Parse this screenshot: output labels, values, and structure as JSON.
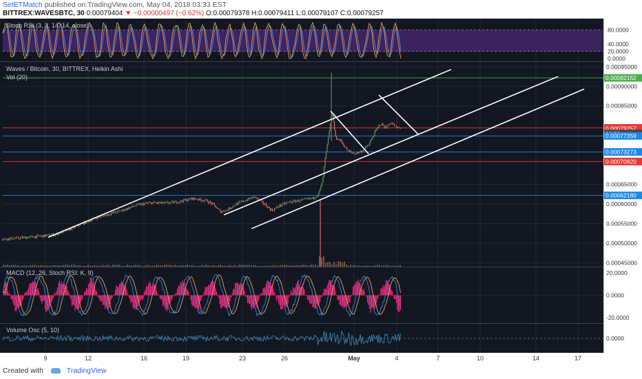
{
  "header": {
    "author": "SetETMatch",
    "published_text": "published on TradingView.com, May 04, 2018 03:33 EST",
    "symbol": "BITTREX:WAVESBTC, 30",
    "last_price": "0.00079404",
    "change": "▼ −0.00000497 (−0.62%)",
    "ohlc": "O:0.00079378 H:0.00079411 L:0.00079107 C:0.00079257"
  },
  "footer": {
    "created_with": "Created with",
    "brand": "TradingView"
  },
  "colors": {
    "background": "#131722",
    "grid": "#232733",
    "axis_text": "#c8cbd3",
    "candle_up": "#6c9b5f",
    "candle_down": "#e26d6d",
    "trendline": "#ffffff",
    "stoch_k": "#f6a34b",
    "stoch_d": "#5b8fd9",
    "stoch_band": "#5c2e91",
    "macd_hist": "#f2297a",
    "macd_line": "#2f86e8",
    "signal_line": "#f6a34b",
    "vol_osc": "#3a8fbf"
  },
  "chart_data": {
    "type": "line",
    "panes": {
      "stoch_rsi": {
        "label": "Stoch RSI (3, 3, 14, 14, close)",
        "axis_ticks": [
          "80.0000",
          "40.0000",
          "20.0000",
          "0.0000"
        ],
        "ylim": [
          0,
          100
        ]
      },
      "price": {
        "label": "Waves / Bitcoin, 30, BITTREX, Heikin Ashi",
        "vol_label": "Vol (20)",
        "ylim": [
          0.00044,
          0.000962
        ],
        "axis_ticks": [
          "0.00095000",
          "0.00090000",
          "0.00085000",
          "0.00065000",
          "0.00060000",
          "0.00055000",
          "0.00050000",
          "0.00045000"
        ],
        "price_labels": [
          {
            "text": "0.00092152",
            "value": 0.00092152,
            "color": "#4caf50"
          },
          {
            "text": "0.00079404",
            "value": 0.00079404,
            "color": "#e53935"
          },
          {
            "text": "0.00079257",
            "value": 0.00079257,
            "color": "#e53935"
          },
          {
            "text": "26:59",
            "value": 0.0007795,
            "color": "#444444"
          },
          {
            "text": "0.00077359",
            "value": 0.00077359,
            "color": "#1e88e5"
          },
          {
            "text": "0.00073273",
            "value": 0.00073273,
            "color": "#1e88e5"
          },
          {
            "text": "0.00070820",
            "value": 0.0007082,
            "color": "#e53935"
          },
          {
            "text": "0.00062180",
            "value": 0.0006218,
            "color": "#1e88e5"
          }
        ],
        "horizontal_levels": [
          {
            "value": 0.00092152,
            "color": "#4caf50"
          },
          {
            "value": 0.00079404,
            "color": "#e53935"
          },
          {
            "value": 0.00077359,
            "color": "#1e88e5"
          },
          {
            "value": 0.00073273,
            "color": "#1e88e5"
          },
          {
            "value": 0.0007082,
            "color": "#e53935"
          },
          {
            "value": 0.0006218,
            "color": "#1e88e5"
          }
        ],
        "close_series": [
          [
            0,
            0.00051
          ],
          [
            20,
            0.000512
          ],
          [
            40,
            0.000515
          ],
          [
            60,
            0.000518
          ],
          [
            80,
            0.000522
          ],
          [
            100,
            0.000535
          ],
          [
            120,
            0.00055
          ],
          [
            140,
            0.000565
          ],
          [
            160,
            0.000575
          ],
          [
            180,
            0.000585
          ],
          [
            200,
            0.000598
          ],
          [
            220,
            0.000603
          ],
          [
            240,
            0.000602
          ],
          [
            260,
            0.000606
          ],
          [
            280,
            0.000614
          ],
          [
            300,
            0.000608
          ],
          [
            310,
            0.000598
          ],
          [
            320,
            0.00058
          ],
          [
            330,
            0.000585
          ],
          [
            340,
            0.000597
          ],
          [
            350,
            0.000605
          ],
          [
            360,
            0.000612
          ],
          [
            370,
            0.000618
          ],
          [
            385,
            0.000598
          ],
          [
            395,
            0.000583
          ],
          [
            405,
            0.000595
          ],
          [
            420,
            0.000605
          ],
          [
            440,
            0.00061
          ],
          [
            455,
            0.000615
          ],
          [
            462,
            0.000625
          ],
          [
            468,
            0.000655
          ],
          [
            472,
            0.000715
          ],
          [
            478,
            0.000785
          ],
          [
            482,
            0.000835
          ],
          [
            487,
            0.00077
          ],
          [
            495,
            0.00076
          ],
          [
            505,
            0.000735
          ],
          [
            515,
            0.000728
          ],
          [
            525,
            0.000735
          ],
          [
            535,
            0.00075
          ],
          [
            545,
            0.000785
          ],
          [
            552,
            0.000805
          ],
          [
            560,
            0.000795
          ],
          [
            568,
            0.000808
          ],
          [
            575,
            0.000795
          ],
          [
            582,
            0.000792
          ]
        ],
        "trendlines": [
          {
            "from": [
              70,
              0.000515
            ],
            "to": [
              655,
              0.000943
            ]
          },
          {
            "from": [
              325,
              0.000572
            ],
            "to": [
              810,
              0.000925
            ]
          },
          {
            "from": [
              365,
              0.000537
            ],
            "to": [
              848,
              0.000893
            ]
          },
          {
            "from": [
              480,
              0.000837
            ],
            "to": [
              535,
              0.000728
            ]
          },
          {
            "from": [
              550,
              0.000878
            ],
            "to": [
              607,
              0.000778
            ]
          }
        ]
      },
      "macd": {
        "label": "MACD (12, 26, Stoch RSI: K, 9)",
        "axis_ticks": [
          "20.0000",
          "0.0000",
          "-20.0000"
        ],
        "ylim": [
          -25,
          25
        ]
      },
      "volume_osc": {
        "label": "Volume Osc (5, 10)",
        "axis_ticks": [
          "0.0000"
        ],
        "ylim": [
          -6,
          6
        ]
      }
    },
    "x_axis": {
      "ticks": [
        {
          "label": "9",
          "x": 66
        },
        {
          "label": "12",
          "x": 128
        },
        {
          "label": "16",
          "x": 209
        },
        {
          "label": "19",
          "x": 270
        },
        {
          "label": "23",
          "x": 352
        },
        {
          "label": "26",
          "x": 413
        },
        {
          "label": "May",
          "x": 514
        },
        {
          "label": "4",
          "x": 576
        },
        {
          "label": "7",
          "x": 636
        },
        {
          "label": "10",
          "x": 697
        },
        {
          "label": "14",
          "x": 778
        },
        {
          "label": "17",
          "x": 839
        }
      ]
    },
    "grid": true
  }
}
